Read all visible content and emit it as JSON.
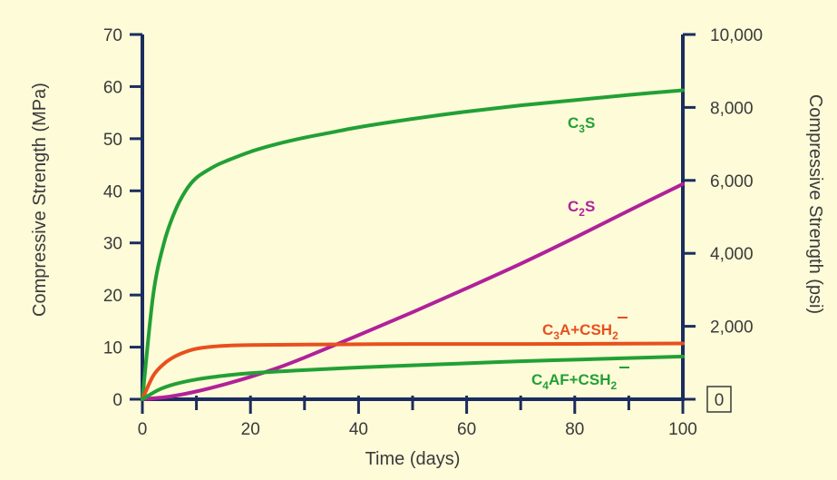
{
  "chart_data": {
    "type": "line",
    "xlabel": "Time (days)",
    "ylabel_left": "Compressive Strength (MPa)",
    "ylabel_right": "Compressive Strength (psi)",
    "xlim": [
      0,
      100
    ],
    "ylim_left": [
      0,
      70
    ],
    "ylim_right": [
      0,
      10000
    ],
    "x_ticks": [
      0,
      20,
      40,
      60,
      80,
      100
    ],
    "y_ticks_left": [
      0,
      10,
      20,
      30,
      40,
      50,
      60,
      70
    ],
    "y_ticks_right": [
      "0",
      "2,000",
      "4,000",
      "6,000",
      "8,000",
      "10,000"
    ],
    "y_ticks_right_values": [
      0,
      2000,
      4000,
      6000,
      8000,
      10000
    ],
    "grid": false,
    "legend": "none",
    "series": [
      {
        "name": "C3S",
        "color": "#22a035",
        "points": [
          [
            0,
            0
          ],
          [
            2,
            20
          ],
          [
            4,
            30
          ],
          [
            6,
            36
          ],
          [
            8,
            40
          ],
          [
            10,
            42.5
          ],
          [
            13,
            44.5
          ],
          [
            15,
            45.5
          ],
          [
            20,
            47.5
          ],
          [
            25,
            49
          ],
          [
            30,
            50.2
          ],
          [
            35,
            51.2
          ],
          [
            40,
            52.2
          ],
          [
            50,
            53.8
          ],
          [
            60,
            55.2
          ],
          [
            70,
            56.4
          ],
          [
            80,
            57.4
          ],
          [
            90,
            58.4
          ],
          [
            100,
            59.3
          ]
        ]
      },
      {
        "name": "C2S",
        "color": "#b0219a",
        "points": [
          [
            0,
            0
          ],
          [
            5,
            0.5
          ],
          [
            10,
            1.5
          ],
          [
            15,
            2.8
          ],
          [
            20,
            4.3
          ],
          [
            25,
            6
          ],
          [
            30,
            8
          ],
          [
            40,
            12.3
          ],
          [
            50,
            16.7
          ],
          [
            60,
            21.3
          ],
          [
            70,
            26
          ],
          [
            80,
            31
          ],
          [
            90,
            36.2
          ],
          [
            100,
            41.3
          ]
        ]
      },
      {
        "name": "C3A+CSH2",
        "color": "#e8501e",
        "points": [
          [
            0,
            0
          ],
          [
            2,
            4.5
          ],
          [
            4,
            6.8
          ],
          [
            6,
            8.2
          ],
          [
            8,
            9.1
          ],
          [
            10,
            9.7
          ],
          [
            13,
            10.1
          ],
          [
            16,
            10.3
          ],
          [
            20,
            10.4
          ],
          [
            30,
            10.5
          ],
          [
            50,
            10.6
          ],
          [
            70,
            10.6
          ],
          [
            100,
            10.7
          ]
        ]
      },
      {
        "name": "C4AF+CSH2",
        "color": "#22a035",
        "points": [
          [
            0,
            0
          ],
          [
            3,
            1.8
          ],
          [
            6,
            2.9
          ],
          [
            10,
            3.8
          ],
          [
            15,
            4.5
          ],
          [
            20,
            5
          ],
          [
            30,
            5.6
          ],
          [
            40,
            6.1
          ],
          [
            50,
            6.5
          ],
          [
            60,
            6.9
          ],
          [
            70,
            7.3
          ],
          [
            80,
            7.6
          ],
          [
            90,
            7.9
          ],
          [
            100,
            8.2
          ]
        ]
      }
    ]
  },
  "labels": {
    "c3s": {
      "main": "C",
      "sub": "3",
      "rest": "S"
    },
    "c2s": {
      "main": "C",
      "sub": "2",
      "rest": "S"
    },
    "c3a": {
      "main": "C",
      "sub": "3",
      "mid": "A+C",
      "s_bar": "S",
      "h": "H",
      "sub2": "2"
    },
    "c4af": {
      "main": "C",
      "sub": "4",
      "mid": "AF+C",
      "s_bar": "S",
      "h": "H",
      "sub2": "2"
    }
  },
  "colors": {
    "background": "#fdfbd8",
    "axis": "#1b2d5e",
    "text": "#3a3a3a"
  }
}
